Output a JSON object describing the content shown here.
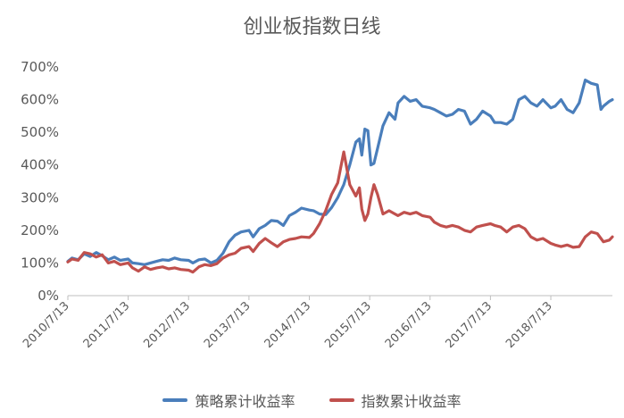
{
  "chart_data": {
    "type": "line",
    "title": "创业板指数日线",
    "xlabel": "",
    "ylabel": "",
    "ylim": [
      0,
      700
    ],
    "yticks": [
      0,
      100,
      200,
      300,
      400,
      500,
      600,
      700
    ],
    "ytick_labels": [
      "0%",
      "100%",
      "200%",
      "300%",
      "400%",
      "500%",
      "600%",
      "700%"
    ],
    "xticks": [
      "2010/7/13",
      "2011/7/13",
      "2012/7/13",
      "2013/7/13",
      "2014/7/13",
      "2015/7/13",
      "2016/7/13",
      "2017/7/13",
      "2018/7/13"
    ],
    "xlim": [
      2010.53,
      2019.55
    ],
    "grid": false,
    "legend_position": "bottom",
    "colors": {
      "strategy": "#4a7ebb",
      "index": "#c0504d"
    },
    "series": [
      {
        "name": "策略累计收益率",
        "color": "#4a7ebb",
        "x": [
          2010.53,
          2010.6,
          2010.7,
          2010.8,
          2010.9,
          2011.0,
          2011.1,
          2011.2,
          2011.3,
          2011.4,
          2011.53,
          2011.6,
          2011.7,
          2011.8,
          2011.9,
          2012.0,
          2012.1,
          2012.2,
          2012.3,
          2012.4,
          2012.53,
          2012.6,
          2012.7,
          2012.8,
          2012.9,
          2013.0,
          2013.1,
          2013.2,
          2013.3,
          2013.4,
          2013.53,
          2013.6,
          2013.7,
          2013.8,
          2013.9,
          2014.0,
          2014.1,
          2014.2,
          2014.3,
          2014.4,
          2014.53,
          2014.6,
          2014.7,
          2014.8,
          2014.9,
          2015.0,
          2015.1,
          2015.2,
          2015.3,
          2015.36,
          2015.4,
          2015.45,
          2015.5,
          2015.55,
          2015.6,
          2015.66,
          2015.75,
          2015.85,
          2015.95,
          2016.0,
          2016.1,
          2016.2,
          2016.3,
          2016.4,
          2016.53,
          2016.6,
          2016.7,
          2016.8,
          2016.9,
          2017.0,
          2017.1,
          2017.2,
          2017.3,
          2017.4,
          2017.53,
          2017.6,
          2017.7,
          2017.8,
          2017.9,
          2018.0,
          2018.1,
          2018.2,
          2018.3,
          2018.4,
          2018.53,
          2018.6,
          2018.7,
          2018.8,
          2018.9,
          2019.0,
          2019.1,
          2019.2,
          2019.3,
          2019.36,
          2019.4,
          2019.5,
          2019.55
        ],
        "values": [
          105,
          115,
          110,
          128,
          120,
          132,
          122,
          110,
          118,
          108,
          112,
          100,
          98,
          95,
          100,
          105,
          110,
          108,
          115,
          110,
          108,
          100,
          110,
          112,
          100,
          108,
          130,
          165,
          185,
          195,
          200,
          180,
          205,
          215,
          230,
          228,
          215,
          245,
          255,
          268,
          262,
          260,
          250,
          248,
          270,
          300,
          340,
          400,
          470,
          480,
          430,
          510,
          505,
          400,
          405,
          450,
          520,
          560,
          540,
          590,
          610,
          595,
          600,
          580,
          575,
          570,
          560,
          550,
          555,
          570,
          565,
          525,
          540,
          565,
          550,
          530,
          530,
          525,
          540,
          600,
          610,
          590,
          580,
          600,
          575,
          580,
          600,
          570,
          560,
          590,
          660,
          650,
          645,
          570,
          580,
          595,
          600
        ]
      },
      {
        "name": "指数累计收益率",
        "color": "#c0504d",
        "x": [
          2010.53,
          2010.6,
          2010.7,
          2010.8,
          2010.9,
          2011.0,
          2011.1,
          2011.2,
          2011.3,
          2011.4,
          2011.53,
          2011.6,
          2011.7,
          2011.8,
          2011.9,
          2012.0,
          2012.1,
          2012.2,
          2012.3,
          2012.4,
          2012.53,
          2012.6,
          2012.7,
          2012.8,
          2012.9,
          2013.0,
          2013.1,
          2013.2,
          2013.3,
          2013.4,
          2013.53,
          2013.6,
          2013.7,
          2013.8,
          2013.9,
          2014.0,
          2014.1,
          2014.2,
          2014.3,
          2014.4,
          2014.53,
          2014.6,
          2014.7,
          2014.8,
          2014.9,
          2015.0,
          2015.1,
          2015.2,
          2015.3,
          2015.36,
          2015.4,
          2015.45,
          2015.5,
          2015.55,
          2015.6,
          2015.66,
          2015.75,
          2015.85,
          2015.95,
          2016.0,
          2016.1,
          2016.2,
          2016.3,
          2016.4,
          2016.53,
          2016.6,
          2016.7,
          2016.8,
          2016.9,
          2017.0,
          2017.1,
          2017.2,
          2017.3,
          2017.4,
          2017.53,
          2017.6,
          2017.7,
          2017.8,
          2017.9,
          2018.0,
          2018.1,
          2018.2,
          2018.3,
          2018.4,
          2018.53,
          2018.6,
          2018.7,
          2018.8,
          2018.9,
          2019.0,
          2019.1,
          2019.2,
          2019.3,
          2019.36,
          2019.4,
          2019.5,
          2019.55
        ],
        "values": [
          103,
          112,
          108,
          132,
          128,
          118,
          125,
          100,
          105,
          95,
          100,
          85,
          75,
          88,
          80,
          85,
          88,
          82,
          85,
          80,
          78,
          72,
          88,
          95,
          92,
          98,
          115,
          125,
          130,
          145,
          150,
          135,
          160,
          175,
          162,
          150,
          165,
          172,
          175,
          180,
          178,
          190,
          220,
          260,
          310,
          345,
          440,
          340,
          305,
          330,
          265,
          230,
          250,
          300,
          340,
          310,
          250,
          260,
          250,
          245,
          255,
          250,
          255,
          245,
          240,
          225,
          215,
          210,
          215,
          210,
          200,
          195,
          210,
          215,
          220,
          215,
          210,
          195,
          210,
          215,
          205,
          180,
          170,
          175,
          160,
          155,
          150,
          155,
          148,
          150,
          180,
          195,
          190,
          175,
          165,
          170,
          180
        ]
      }
    ]
  }
}
